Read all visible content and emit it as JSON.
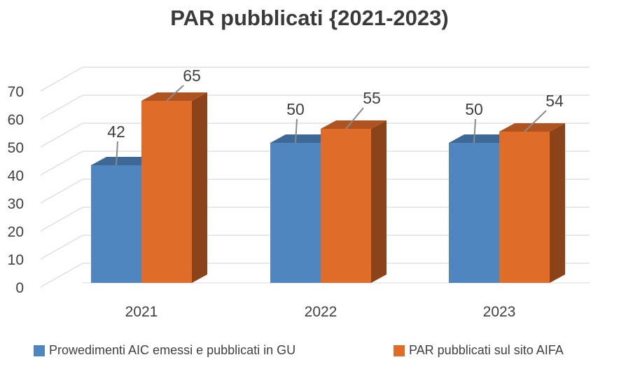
{
  "chart_data": {
    "type": "bar",
    "title": "PAR pubblicati {2021-2023)",
    "categories": [
      "2021",
      "2022",
      "2023"
    ],
    "series": [
      {
        "name": "Prowedimenti AIC emessi e pubblicati in GU",
        "values": [
          42,
          50,
          50
        ],
        "color": "#4f86c0"
      },
      {
        "name": "PAR pubblicati sul sito AIFA",
        "values": [
          65,
          55,
          54
        ],
        "color": "#e06c2a"
      }
    ],
    "ylim": [
      0,
      70
    ],
    "yticks": [
      0,
      10,
      20,
      30,
      40,
      50,
      60,
      70
    ],
    "style": "3d-column",
    "grid": true,
    "legend": "bottom"
  }
}
